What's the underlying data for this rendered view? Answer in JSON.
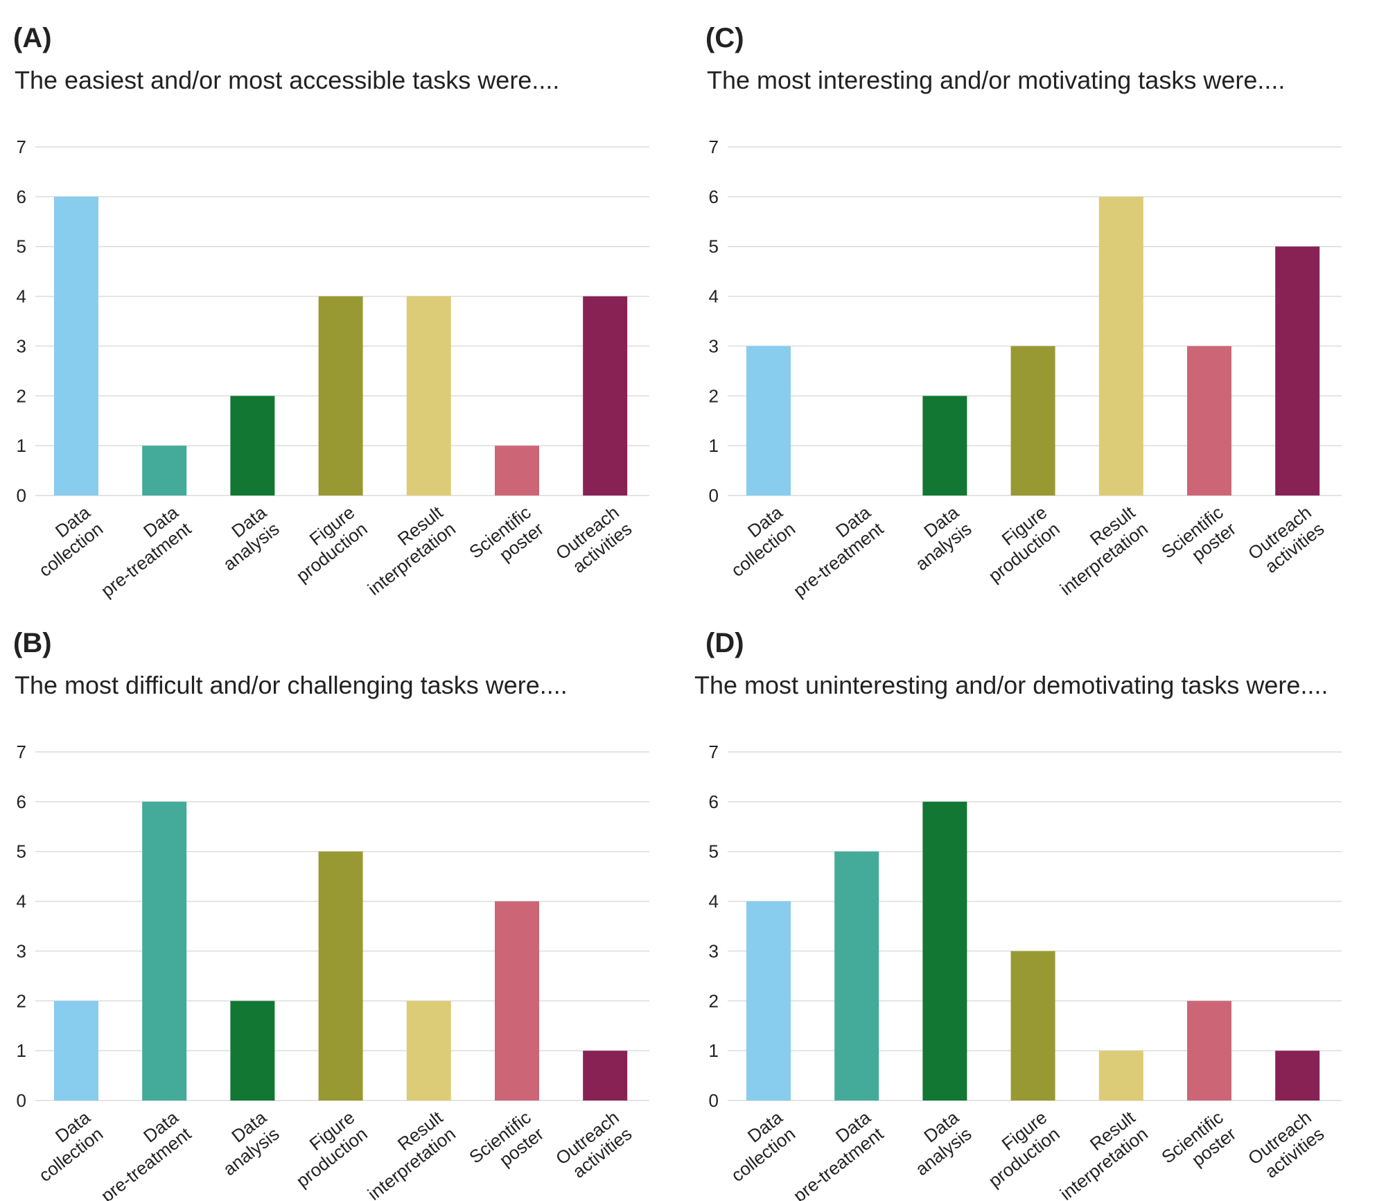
{
  "chart_data": [
    {
      "type": "bar",
      "panel": "(A)",
      "title": "The easiest and/or most accessible tasks were....",
      "categories": [
        [
          "Data",
          "collection"
        ],
        [
          "Data",
          "pre-treatment"
        ],
        [
          "Data",
          "analysis"
        ],
        [
          "Figure",
          "production"
        ],
        [
          "Result",
          "interpretation"
        ],
        [
          "Scientific",
          "poster"
        ],
        [
          "Outreach",
          "activities"
        ]
      ],
      "values": [
        6,
        1,
        2,
        4,
        4,
        1,
        4
      ],
      "ylim": [
        0,
        7
      ],
      "yticks": [
        "0",
        "1",
        "2",
        "3",
        "4",
        "5",
        "6",
        "7"
      ],
      "grid": true
    },
    {
      "type": "bar",
      "panel": "(C)",
      "title": "The most interesting and/or motivating tasks were....",
      "categories": [
        [
          "Data",
          "collection"
        ],
        [
          "Data",
          "pre-treatment"
        ],
        [
          "Data",
          "analysis"
        ],
        [
          "Figure",
          "production"
        ],
        [
          "Result",
          "interpretation"
        ],
        [
          "Scientific",
          "poster"
        ],
        [
          "Outreach",
          "activities"
        ]
      ],
      "values": [
        3,
        0,
        2,
        3,
        6,
        3,
        5
      ],
      "ylim": [
        0,
        7
      ],
      "yticks": [
        "0",
        "1",
        "2",
        "3",
        "4",
        "5",
        "6",
        "7"
      ],
      "grid": true
    },
    {
      "type": "bar",
      "panel": "(B)",
      "title": "The most difficult and/or challenging tasks were....",
      "categories": [
        [
          "Data",
          "collection"
        ],
        [
          "Data",
          "pre-treatment"
        ],
        [
          "Data",
          "analysis"
        ],
        [
          "Figure",
          "production"
        ],
        [
          "Result",
          "interpretation"
        ],
        [
          "Scientific",
          "poster"
        ],
        [
          "Outreach",
          "activities"
        ]
      ],
      "values": [
        2,
        6,
        2,
        5,
        2,
        4,
        1
      ],
      "ylim": [
        0,
        7
      ],
      "yticks": [
        "0",
        "1",
        "2",
        "3",
        "4",
        "5",
        "6",
        "7"
      ],
      "grid": true
    },
    {
      "type": "bar",
      "panel": "(D)",
      "title": "The most uninteresting and/or demotivating tasks were....",
      "categories": [
        [
          "Data",
          "collection"
        ],
        [
          "Data",
          "pre-treatment"
        ],
        [
          "Data",
          "analysis"
        ],
        [
          "Figure",
          "production"
        ],
        [
          "Result",
          "interpretation"
        ],
        [
          "Scientific",
          "poster"
        ],
        [
          "Outreach",
          "activities"
        ]
      ],
      "values": [
        4,
        5,
        6,
        3,
        1,
        2,
        1
      ],
      "ylim": [
        0,
        7
      ],
      "yticks": [
        "0",
        "1",
        "2",
        "3",
        "4",
        "5",
        "6",
        "7"
      ],
      "grid": true
    }
  ],
  "colors": [
    "#88CCEE",
    "#44AA99",
    "#117733",
    "#999933",
    "#DDCC77",
    "#CC6677",
    "#882255"
  ]
}
